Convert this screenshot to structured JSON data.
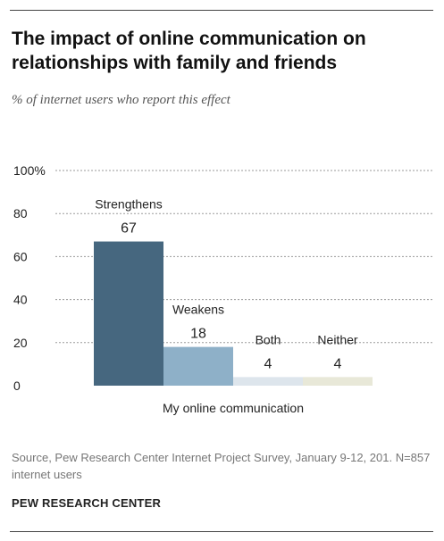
{
  "title": "The impact of online communication on relationships with family and friends",
  "subtitle": "% of internet users who report this effect",
  "source": "Source, Pew Research Center Internet Project Survey, January 9-12, 201. N=857 internet users",
  "brand": "PEW RESEARCH CENTER",
  "chart_data": {
    "type": "bar",
    "title": "The impact of online communication on relationships with family and friends",
    "subtitle": "% of internet users who report this effect",
    "xlabel": "My online communication",
    "ylabel": "",
    "ylim": [
      0,
      100
    ],
    "yticks": [
      0,
      20,
      40,
      60,
      80,
      100
    ],
    "ytick_labels": [
      "0",
      "20",
      "40",
      "60",
      "80",
      "100%"
    ],
    "grid": true,
    "categories": [
      "Strengthens",
      "Weakens",
      "Both",
      "Neither"
    ],
    "values": [
      67,
      18,
      4,
      4
    ],
    "colors": [
      "#46677f",
      "#8eb0c8",
      "#dde5ec",
      "#e8e8d8"
    ]
  }
}
